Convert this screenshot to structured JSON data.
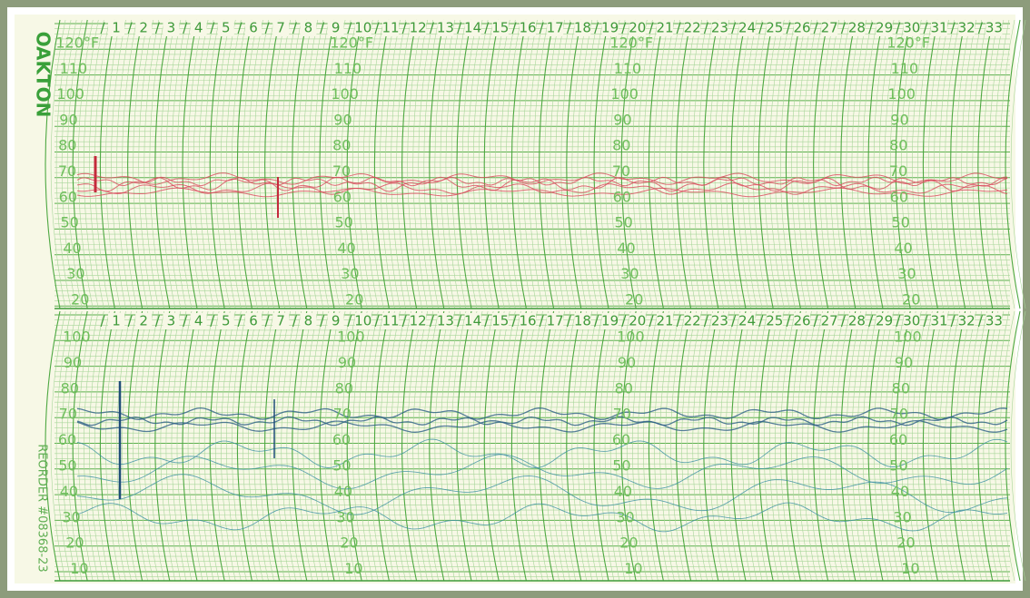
{
  "brand": "OAKTON",
  "reorder": "REORDER #08368-23",
  "top_panel": {
    "days": [
      "1",
      "2",
      "3",
      "4",
      "5",
      "6",
      "7",
      "8",
      "9",
      "10",
      "11",
      "12",
      "13",
      "14",
      "15",
      "16",
      "17",
      "18",
      "19",
      "20",
      "21",
      "22",
      "23",
      "24",
      "25",
      "26",
      "27",
      "28",
      "29",
      "30",
      "31",
      "32",
      "33"
    ],
    "scale": [
      "120°F",
      "110",
      "100",
      "90",
      "80",
      "70",
      "60",
      "50",
      "40",
      "30",
      "20"
    ]
  },
  "bottom_panel": {
    "days": [
      "1",
      "2",
      "3",
      "4",
      "5",
      "6",
      "7",
      "8",
      "9",
      "10",
      "11",
      "12",
      "13",
      "14",
      "15",
      "16",
      "17",
      "18",
      "19",
      "20",
      "21",
      "22",
      "23",
      "24",
      "25",
      "26",
      "27",
      "28",
      "29",
      "30",
      "31",
      "32",
      "33"
    ],
    "scale": [
      "100",
      "90",
      "80",
      "70",
      "60",
      "50",
      "40",
      "30",
      "20",
      "10"
    ]
  }
}
